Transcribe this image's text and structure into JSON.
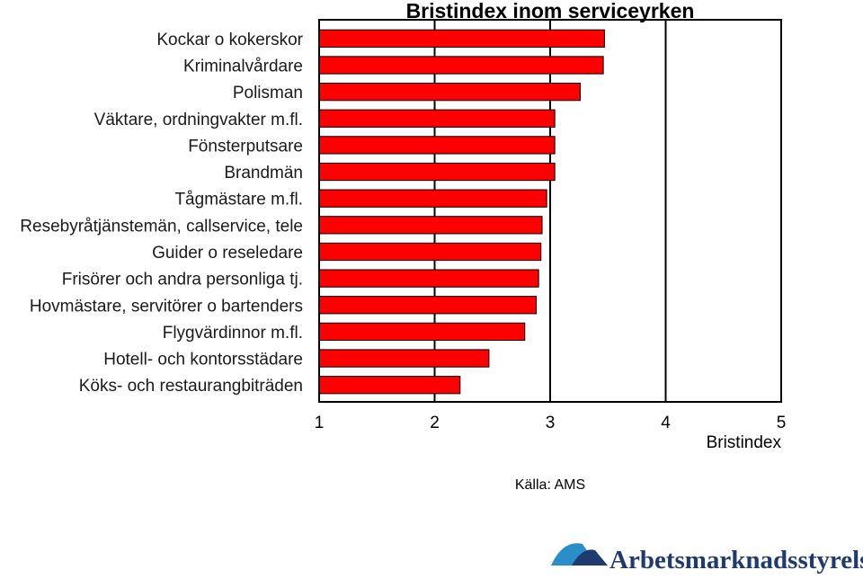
{
  "chart_data": {
    "type": "bar",
    "orientation": "horizontal",
    "title": "Bristindex inom serviceyrken",
    "xlabel": "Bristindex",
    "ylabel": "",
    "xlim": [
      1,
      5
    ],
    "xticks": [
      1,
      2,
      3,
      4,
      5
    ],
    "grid": "vertical at 2, 3, 4",
    "bar_color": "#ff0000",
    "categories": [
      "Kockar o kokerskor",
      "Kriminalvårdare",
      "Polisman",
      "Väktare, ordningvakter m.fl.",
      "Fönsterputsare",
      "Brandmän",
      "Tågmästare m.fl.",
      "Resebyråtjänstemän, callservice, tele",
      "Guider o reseledare",
      "Frisörer och andra personliga tj.",
      "Hovmästare, servitörer o bartenders",
      "Flygvärdinnor m.fl.",
      "Hotell- och kontorsstädare",
      "Köks- och restaurangbiträden"
    ],
    "values": [
      3.47,
      3.46,
      3.26,
      3.04,
      3.04,
      3.04,
      2.97,
      2.93,
      2.92,
      2.9,
      2.88,
      2.78,
      2.47,
      2.22
    ]
  },
  "source_note": "Källa: AMS",
  "logo": {
    "text": "Arbetsmarknadsstyrelsen",
    "color": "#1f3a6e",
    "accent": "#2a8fc9"
  }
}
